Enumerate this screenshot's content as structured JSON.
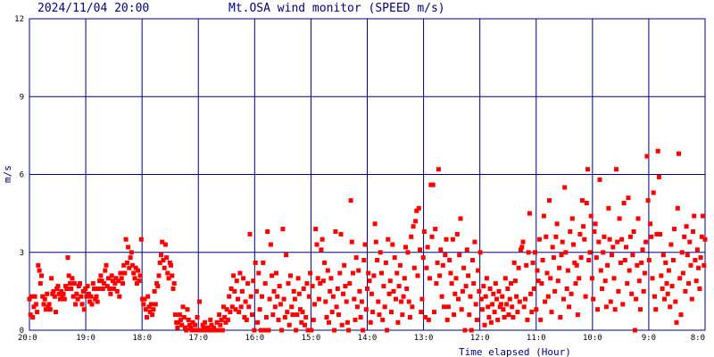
{
  "header": {
    "datetime": "2024/11/04 20:00",
    "title": "Mt.OSA wind monitor (SPEED m/s)"
  },
  "colors": {
    "grid": "#000080",
    "points": "#ff0000",
    "text": "#000080",
    "background": "#ffffff"
  },
  "chart_data": {
    "type": "scatter",
    "title": "Mt.OSA wind monitor (SPEED m/s)",
    "xlabel": "Time elapsed (Hour)",
    "ylabel": "m/s",
    "x_ticks": [
      "20:0",
      "19:0",
      "18:0",
      "17:0",
      "16:0",
      "15:0",
      "14:0",
      "13:0",
      "12:0",
      "11:0",
      "10:0",
      "9:0",
      "8:0"
    ],
    "xlim": [
      0,
      12
    ],
    "x_unit": "hours elapsed since 2024/11/04 20:00",
    "y_ticks": [
      0,
      3,
      6,
      9,
      12
    ],
    "ylim": [
      0,
      12
    ],
    "grid": true,
    "series": [
      {
        "values": [
          1.2,
          0.6,
          1.3,
          0.5,
          0.9,
          1.3,
          1.0,
          0.7,
          2.5,
          2.3,
          1.8,
          2.1,
          1.3,
          1.0,
          1.2,
          0.8,
          1.4,
          0.9,
          1.0,
          0.8,
          2.0,
          1.4,
          1.5,
          1.3,
          0.7,
          1.6,
          1.7,
          1.4,
          1.2,
          1.5,
          1.3,
          1.4,
          1.2,
          1.7,
          1.6,
          2.8,
          2.1,
          1.8,
          1.6,
          2.0,
          1.3,
          1.8,
          1.0,
          1.4,
          1.2,
          1.7,
          1.8,
          1.3,
          1.0,
          1.5,
          0.8,
          1.6,
          1.3,
          1.7,
          1.4,
          1.1,
          1.3,
          1.0,
          1.8,
          1.6,
          1.2,
          1.3,
          1.1,
          1.6,
          1.9,
          2.1,
          1.9,
          1.6,
          1.8,
          2.3,
          2.5,
          1.7,
          2.0,
          1.6,
          1.4,
          2.1,
          1.9,
          1.6,
          1.8,
          2.0,
          1.5,
          1.9,
          1.3,
          2.2,
          2.0,
          1.8,
          2.5,
          2.2,
          3.5,
          2.6,
          3.2,
          2.4,
          2.8,
          3.0,
          2.5,
          2.2,
          2.0,
          2.4,
          1.8,
          2.3,
          1.9,
          2.1,
          3.5,
          1.2,
          1.0,
          1.2,
          0.8,
          0.5,
          1.3,
          0.9,
          0.7,
          1.0,
          0.6,
          0.8,
          1.5,
          1.0,
          1.8,
          1.7,
          2.1,
          2.6,
          2.9,
          3.4,
          2.7,
          2.4,
          3.3,
          2.8,
          2.2,
          2.0,
          2.6,
          2.5,
          2.1,
          1.6,
          1.8,
          0.6,
          0.3,
          0.1,
          0.3,
          0.6,
          0.4,
          0.2,
          0.9,
          0.5,
          0.1,
          0.0,
          0.8,
          0.4,
          0.2,
          0.1,
          0.0,
          0.3,
          0.0,
          0.2,
          0.0,
          0.5,
          0.0,
          1.1,
          0.0,
          0.0,
          0.2,
          0.1,
          0.3,
          0.0,
          0.0,
          0.1,
          0.0,
          0.4,
          0.2,
          0.0,
          0.1,
          0.0,
          0.0,
          0.3,
          0.0,
          0.6,
          0.2,
          0.4,
          0.0,
          0.9,
          0.5,
          0.3,
          0.8,
          0.4,
          1.3,
          0.7,
          1.6,
          0.9,
          2.1,
          1.5,
          0.8,
          1.9,
          1.2,
          0.7,
          2.2,
          0.9,
          1.5,
          2.0,
          0.5,
          1.1,
          0.4,
          1.8,
          0.9,
          3.7,
          1.3,
          0.6,
          1.9,
          0.0,
          2.6,
          1.5,
          0.3,
          2.2,
          0.8,
          0.0,
          1.3,
          2.6,
          0.0,
          1.8,
          0.5,
          3.8,
          0.0,
          1.2,
          3.3,
          2.1,
          0.6,
          1.5,
          0.9,
          2.2,
          1.3,
          0.4,
          1.7,
          1.0,
          0.0,
          3.9,
          1.2,
          0.5,
          2.9,
          0.7,
          1.8,
          0.2,
          2.1,
          0.9,
          0.6,
          1.5,
          1.2,
          0.0,
          0.6,
          2.0,
          1.4,
          0.8,
          0.3,
          0.7,
          1.6,
          0.2,
          0.5,
          1.8,
          0.0,
          1.3,
          2.2,
          0.0,
          1.7,
          0.4,
          1.0,
          3.9,
          3.3,
          2.0,
          1.2,
          1.8,
          3.1,
          3.5,
          1.9,
          2.6,
          1.1,
          0.5,
          2.3,
          0.3,
          1.5,
          2.0,
          0.7,
          1.3,
          0.0,
          3.8,
          0.9,
          1.6,
          0.6,
          2.2,
          3.7,
          0.2,
          1.4,
          2.5,
          1.7,
          1.1,
          0.3,
          0.0,
          1.8,
          5.0,
          3.4,
          2.2,
          1.2,
          0.4,
          2.8,
          0.9,
          2.3,
          1.5,
          0.5,
          1.1,
          0.0,
          2.7,
          3.3,
          0.8,
          1.6,
          2.2,
          1.9,
          0.3,
          1.4,
          0.7,
          2.1,
          4.1,
          3.4,
          2.7,
          1.1,
          0.6,
          3.0,
          2.2,
          0.4,
          1.7,
          0.9,
          2.6,
          0.0,
          3.5,
          1.4,
          1.9,
          0.7,
          3.3,
          1.5,
          2.8,
          1.2,
          2.2,
          0.3,
          1.7,
          2.5,
          1.1,
          0.6,
          1.3,
          2.0,
          3.2,
          1.6,
          3.0,
          1.1,
          0.5,
          3.6,
          0.9,
          4.0,
          2.4,
          4.2,
          4.6,
          2.1,
          4.7,
          3.1,
          0.7,
          1.2,
          2.8,
          3.8,
          0.5,
          2.4,
          3.2,
          0.4,
          2.0,
          5.6,
          3.6,
          5.6,
          0.7,
          3.9,
          1.8,
          2.6,
          6.2,
          2.1,
          3.1,
          1.3,
          2.5,
          0.9,
          2.9,
          3.5,
          0.4,
          0.9,
          2.7,
          2.2,
          1.8,
          3.5,
          0.6,
          1.4,
          2.0,
          3.7,
          1.2,
          2.9,
          4.3,
          0.8,
          1.5,
          2.4,
          0.0,
          1.7,
          3.1,
          2.1,
          0.6,
          1.3,
          0.0,
          2.7,
          1.8,
          3.4,
          1.0,
          0.4,
          2.3,
          1.5,
          3.0,
          1.2,
          0.8,
          1.7,
          0.2,
          1.3,
          2.0,
          0.9,
          0.5,
          1.6,
          0.3,
          1.0,
          1.4,
          0.7,
          1.8,
          1.2,
          0.4,
          1.5,
          0.9,
          1.0,
          1.3,
          0.8,
          0.5,
          2.0,
          1.0,
          1.6,
          0.6,
          1.2,
          1.8,
          0.9,
          0.5,
          2.6,
          1.9,
          1.3,
          0.7,
          2.4,
          1.1,
          3.1,
          3.2,
          3.4,
          0.9,
          1.2,
          2.5,
          0.4,
          3.0,
          4.5,
          1.4,
          0.7,
          2.6,
          1.6,
          3.0,
          0.8,
          2.3,
          1.9,
          3.5,
          0.4,
          1.8,
          2.7,
          4.4,
          1.1,
          3.6,
          2.2,
          1.3,
          5.0,
          2.0,
          0.7,
          3.2,
          2.8,
          1.5,
          3.6,
          4.1,
          1.9,
          2.4,
          0.5,
          2.9,
          3.4,
          1.2,
          5.5,
          3.0,
          1.6,
          2.3,
          0.9,
          3.8,
          1.4,
          4.3,
          3.3,
          2.6,
          1.8,
          2.5,
          0.6,
          2.0,
          3.7,
          2.8,
          5.0,
          4.0,
          3.5,
          1.3,
          4.9,
          6.2,
          2.7,
          3.0,
          4.4,
          2.0,
          1.2,
          3.8,
          4.1,
          2.8,
          0.8,
          3.4,
          5.8,
          2.3,
          1.6,
          3.0,
          3.6,
          1.9,
          0.9,
          2.5,
          4.7,
          3.5,
          1.1,
          2.9,
          3.2,
          2.0,
          0.8,
          6.2,
          3.4,
          1.5,
          4.3,
          2.6,
          3.5,
          1.0,
          4.9,
          2.7,
          3.2,
          1.8,
          5.1,
          2.3,
          3.6,
          1.4,
          2.9,
          3.8,
          0.0,
          1.2,
          2.5,
          4.3,
          1.9,
          0.8,
          2.6,
          3.1,
          1.5,
          2.2,
          3.4,
          6.7,
          5.0,
          2.7,
          4.1,
          3.6,
          2.0,
          5.3,
          1.3,
          0.8,
          3.7,
          6.9,
          5.9,
          3.7,
          2.1,
          1.6,
          2.9,
          1.2,
          2.6,
          1.8,
          1.4,
          2.3,
          0.9,
          3.3,
          1.7,
          2.7,
          3.9,
          1.1,
          0.3,
          4.7,
          6.8,
          2.0,
          0.6,
          3.0,
          2.2,
          3.6,
          1.5,
          4.0,
          2.9,
          1.8,
          3.4,
          2.5,
          1.2,
          3.8,
          4.4,
          2.7,
          1.9,
          3.1,
          2.4,
          1.6,
          2.8,
          3.6,
          4.4,
          2.5,
          3.5
        ]
      }
    ]
  }
}
